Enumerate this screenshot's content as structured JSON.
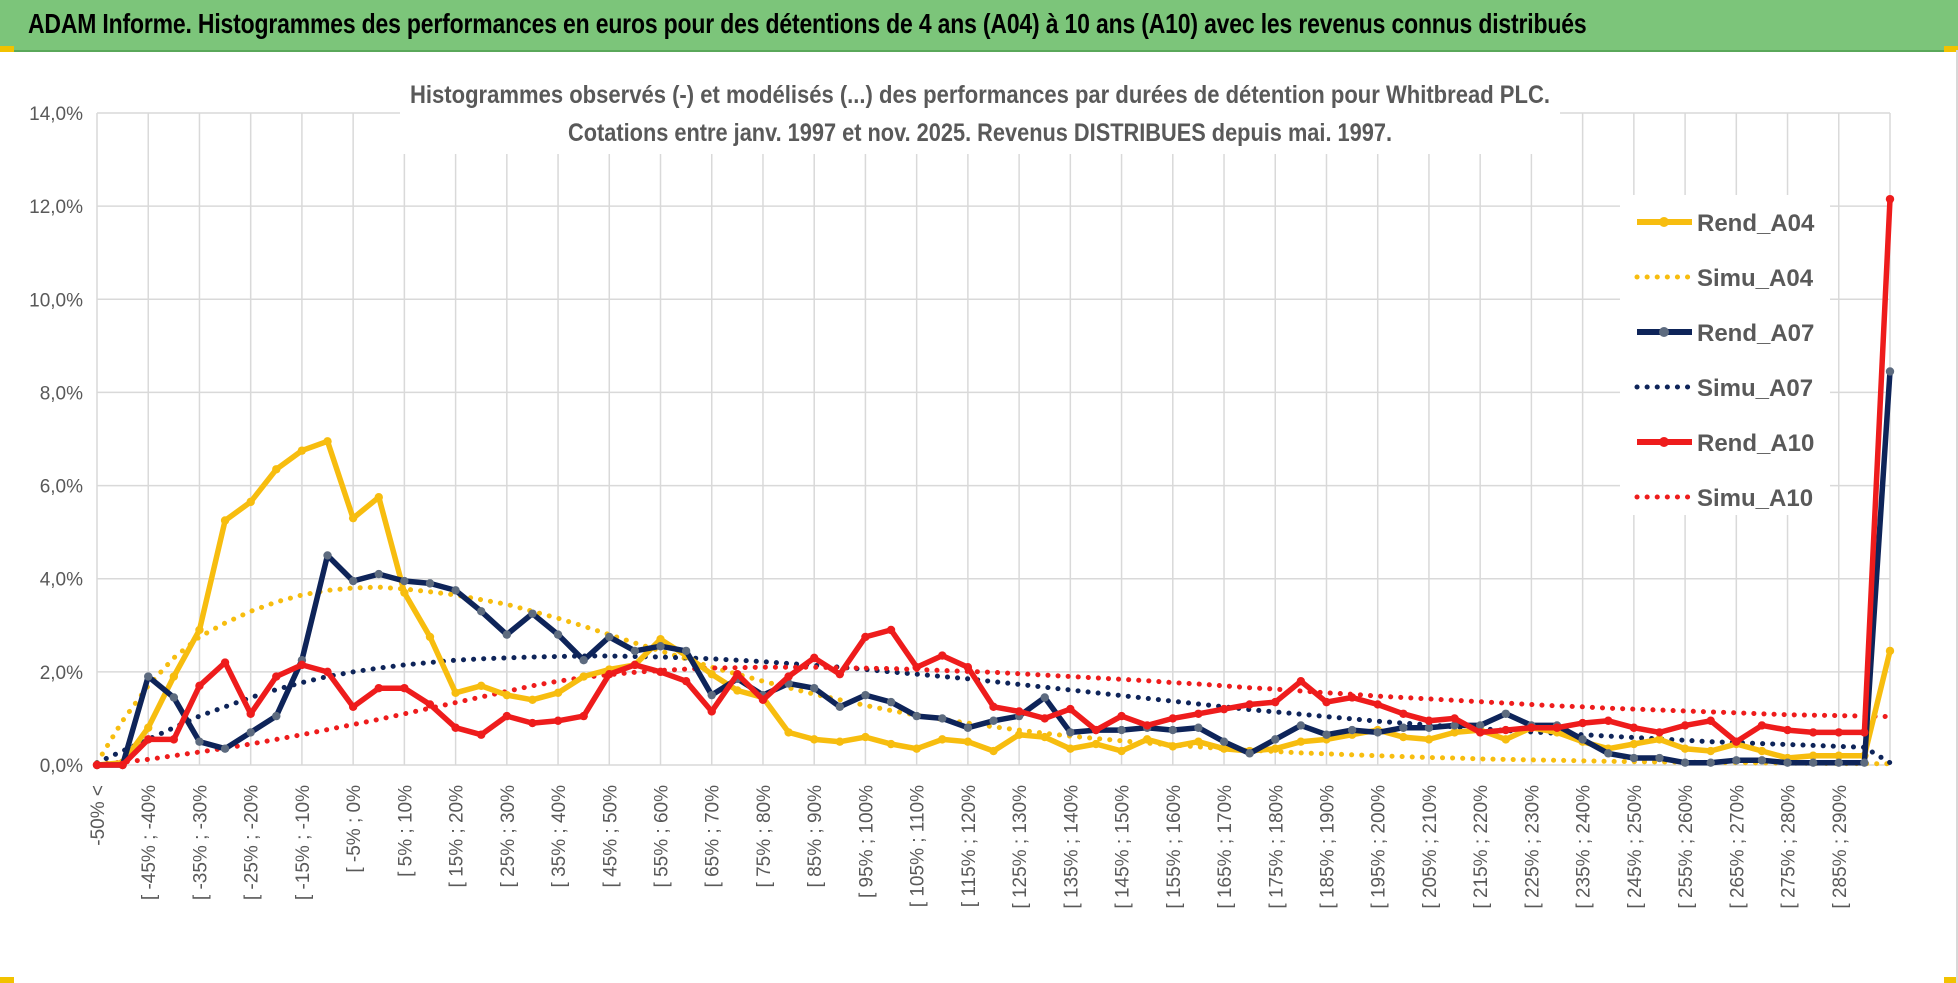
{
  "banner": {
    "title": "ADAM Informe. Histogrammes des performances en euros pour des détentions de 4 ans (A04) à 10 ans (A10) avec les revenus connus distribués"
  },
  "colors": {
    "banner_bg": "#7cc57a",
    "a04": "#f7bd0f",
    "a07": "#0e2459",
    "a07_marker": "#5d6b7f",
    "a10": "#ee1c1c",
    "grid": "#d9d9d9",
    "axis_text": "#595959"
  },
  "chart_data": {
    "type": "line",
    "title": "Histogrammes observés (-) et modélisés (...) des performances par durées de détention pour Whitbread PLC.",
    "subtitle": "Cotations entre janv. 1997 et nov. 2025. Revenus DISTRIBUES depuis mai. 1997.",
    "xlabel": "",
    "ylabel": "",
    "ylim": [
      0,
      14
    ],
    "y_ticks": [
      "0,0%",
      "2,0%",
      "4,0%",
      "6,0%",
      "8,0%",
      "10,0%",
      "12,0%",
      "14,0%"
    ],
    "x_tick_labels": [
      "-50% <",
      "[ -45% ; -40%",
      "[ -35% ; -30%",
      "[ -25% ; -20%",
      "[ -15% ; -10%",
      "[ -5% ; 0%",
      "[ 5% ; 10%",
      "[ 15% ; 20%",
      "[ 25% ; 30%",
      "[ 35% ; 40%",
      "[ 45% ; 50%",
      "[ 55% ; 60%",
      "[ 65% ; 70%",
      "[ 75% ; 80%",
      "[ 85% ; 90%",
      "[ 95% ; 100%",
      "[ 105% ; 110%",
      "[ 115% ; 120%",
      "[ 125% ; 130%",
      "[ 135% ; 140%",
      "[ 145% ; 150%",
      "[ 155% ; 160%",
      "[ 165% ; 170%",
      "[ 175% ; 180%",
      "[ 185% ; 190%",
      "[ 195% ; 200%",
      "[ 205% ; 210%",
      "[ 215% ; 220%",
      "[ 225% ; 230%",
      "[ 235% ; 240%",
      "[ 245% ; 250%",
      "[ 255% ; 260%",
      "[ 265% ; 270%",
      "[ 275% ; 280%",
      "[ 285% ; 290%"
    ],
    "grid": true,
    "legend_position": "right",
    "series": [
      {
        "name": "Rend_A04",
        "style": "solid-markers",
        "values": [
          0.0,
          0.05,
          0.8,
          1.9,
          2.9,
          5.25,
          5.65,
          6.35,
          6.75,
          6.95,
          5.3,
          5.75,
          3.7,
          2.75,
          1.55,
          1.7,
          1.5,
          1.4,
          1.55,
          1.9,
          2.05,
          2.15,
          2.7,
          2.35,
          1.95,
          1.6,
          1.45,
          0.7,
          0.55,
          0.5,
          0.6,
          0.45,
          0.35,
          0.55,
          0.5,
          0.3,
          0.65,
          0.6,
          0.35,
          0.45,
          0.3,
          0.55,
          0.4,
          0.5,
          0.35,
          0.3,
          0.35,
          0.5,
          0.55,
          0.65,
          0.75,
          0.6,
          0.55,
          0.7,
          0.75,
          0.55,
          0.8,
          0.7,
          0.5,
          0.35,
          0.45,
          0.55,
          0.35,
          0.3,
          0.45,
          0.3,
          0.15,
          0.2,
          0.2,
          0.2,
          2.45
        ]
      },
      {
        "name": "Simu_A04",
        "style": "dotted",
        "values": [
          0.05,
          0.95,
          1.7,
          2.3,
          2.75,
          3.05,
          3.3,
          3.5,
          3.65,
          3.75,
          3.8,
          3.82,
          3.78,
          3.72,
          3.65,
          3.55,
          3.45,
          3.3,
          3.15,
          2.98,
          2.8,
          2.62,
          2.45,
          2.28,
          2.1,
          1.95,
          1.8,
          1.66,
          1.52,
          1.4,
          1.28,
          1.17,
          1.07,
          0.98,
          0.9,
          0.82,
          0.75,
          0.68,
          0.62,
          0.57,
          0.52,
          0.47,
          0.43,
          0.39,
          0.35,
          0.32,
          0.29,
          0.26,
          0.24,
          0.22,
          0.2,
          0.18,
          0.16,
          0.15,
          0.13,
          0.12,
          0.11,
          0.1,
          0.09,
          0.08,
          0.07,
          0.065,
          0.06,
          0.055,
          0.05,
          0.045,
          0.04,
          0.035,
          0.03,
          0.03,
          0.025
        ]
      },
      {
        "name": "Rend_A07",
        "style": "solid-markers",
        "values": [
          0.0,
          0.0,
          1.9,
          1.45,
          0.5,
          0.35,
          0.7,
          1.05,
          2.25,
          4.5,
          3.95,
          4.1,
          3.95,
          3.9,
          3.75,
          3.3,
          2.8,
          3.25,
          2.8,
          2.25,
          2.75,
          2.45,
          2.55,
          2.45,
          1.5,
          1.85,
          1.5,
          1.75,
          1.65,
          1.25,
          1.5,
          1.35,
          1.05,
          1.0,
          0.8,
          0.95,
          1.05,
          1.45,
          0.7,
          0.75,
          0.75,
          0.8,
          0.75,
          0.8,
          0.5,
          0.25,
          0.55,
          0.85,
          0.65,
          0.75,
          0.7,
          0.8,
          0.8,
          0.85,
          0.85,
          1.1,
          0.85,
          0.85,
          0.55,
          0.25,
          0.15,
          0.15,
          0.05,
          0.05,
          0.1,
          0.1,
          0.05,
          0.05,
          0.05,
          0.05,
          8.45
        ]
      },
      {
        "name": "Simu_A07",
        "style": "dotted",
        "values": [
          0.05,
          0.3,
          0.55,
          0.8,
          1.05,
          1.25,
          1.45,
          1.62,
          1.77,
          1.9,
          2.0,
          2.08,
          2.15,
          2.2,
          2.25,
          2.28,
          2.3,
          2.32,
          2.33,
          2.34,
          2.34,
          2.33,
          2.32,
          2.3,
          2.28,
          2.25,
          2.22,
          2.18,
          2.14,
          2.1,
          2.05,
          2.0,
          1.95,
          1.9,
          1.85,
          1.79,
          1.73,
          1.67,
          1.61,
          1.55,
          1.49,
          1.43,
          1.37,
          1.31,
          1.25,
          1.19,
          1.14,
          1.09,
          1.04,
          0.99,
          0.94,
          0.9,
          0.86,
          0.82,
          0.78,
          0.74,
          0.71,
          0.68,
          0.65,
          0.62,
          0.59,
          0.56,
          0.53,
          0.5,
          0.48,
          0.46,
          0.44,
          0.42,
          0.4,
          0.38,
          0.05
        ]
      },
      {
        "name": "Rend_A10",
        "style": "solid-markers",
        "values": [
          0.0,
          0.0,
          0.55,
          0.55,
          1.7,
          2.2,
          1.1,
          1.9,
          2.15,
          2.0,
          1.25,
          1.65,
          1.65,
          1.3,
          0.8,
          0.65,
          1.05,
          0.9,
          0.95,
          1.05,
          1.95,
          2.15,
          2.0,
          1.8,
          1.15,
          1.95,
          1.4,
          1.9,
          2.3,
          1.95,
          2.75,
          2.9,
          2.1,
          2.35,
          2.1,
          1.25,
          1.15,
          1.0,
          1.2,
          0.75,
          1.05,
          0.85,
          1.0,
          1.1,
          1.2,
          1.3,
          1.35,
          1.8,
          1.35,
          1.45,
          1.3,
          1.1,
          0.95,
          1.0,
          0.7,
          0.75,
          0.8,
          0.8,
          0.9,
          0.95,
          0.8,
          0.7,
          0.85,
          0.95,
          0.5,
          0.85,
          0.75,
          0.7,
          0.7,
          0.7,
          12.15
        ]
      },
      {
        "name": "Simu_A10",
        "style": "dotted",
        "values": [
          0.02,
          0.06,
          0.12,
          0.2,
          0.28,
          0.36,
          0.45,
          0.55,
          0.65,
          0.76,
          0.87,
          0.98,
          1.1,
          1.22,
          1.34,
          1.46,
          1.58,
          1.7,
          1.8,
          1.88,
          1.94,
          1.99,
          2.03,
          2.06,
          2.08,
          2.09,
          2.1,
          2.1,
          2.1,
          2.09,
          2.08,
          2.07,
          2.05,
          2.03,
          2.01,
          1.99,
          1.96,
          1.93,
          1.9,
          1.87,
          1.84,
          1.81,
          1.77,
          1.74,
          1.7,
          1.66,
          1.63,
          1.59,
          1.55,
          1.52,
          1.48,
          1.45,
          1.42,
          1.39,
          1.36,
          1.33,
          1.3,
          1.27,
          1.25,
          1.22,
          1.2,
          1.18,
          1.16,
          1.14,
          1.12,
          1.1,
          1.08,
          1.07,
          1.06,
          1.05,
          1.04
        ]
      }
    ]
  }
}
